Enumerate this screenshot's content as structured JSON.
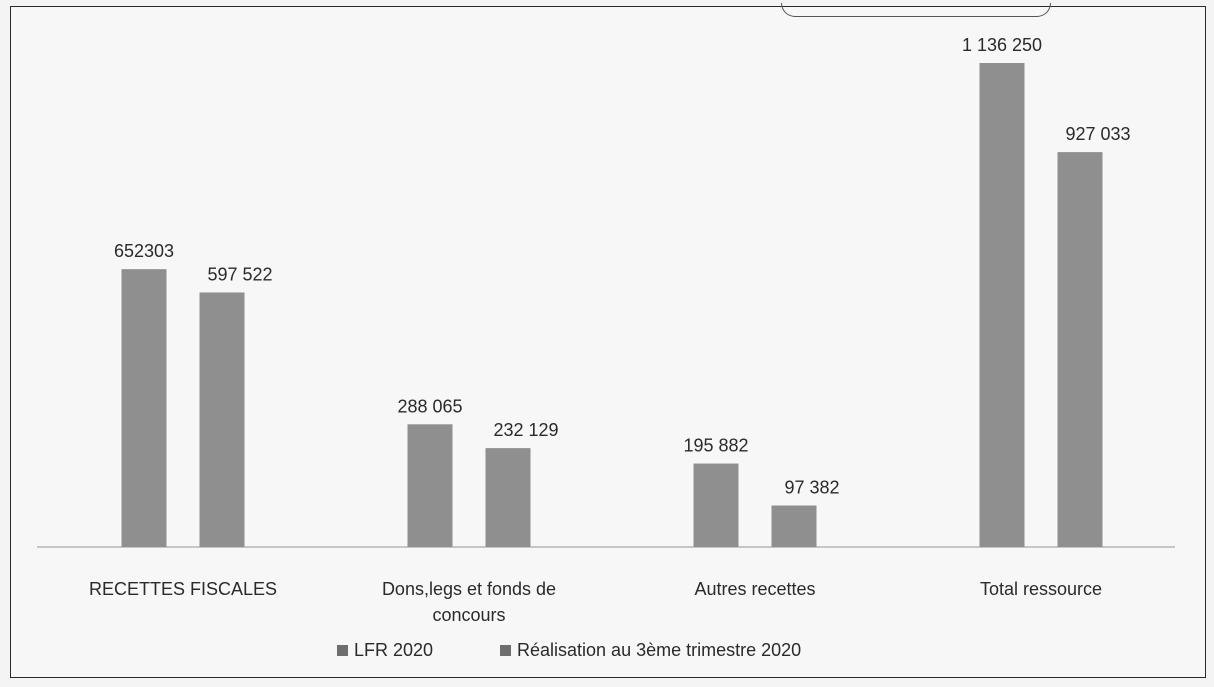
{
  "chart_data": {
    "type": "bar",
    "categories": [
      [
        "RECETTES FISCALES"
      ],
      [
        "Dons,legs et fonds de",
        "concours"
      ],
      [
        "Autres recettes"
      ],
      [
        "Total ressource"
      ]
    ],
    "series": [
      {
        "name": "LFR 2020",
        "values": [
          652303,
          288065,
          195882,
          1136250
        ],
        "labels": [
          "652303",
          "288 065",
          "195 882",
          "1 136 250"
        ]
      },
      {
        "name": "Réalisation au 3ème trimestre 2020",
        "values": [
          597522,
          232129,
          97382,
          927033
        ],
        "labels": [
          "597 522",
          "232 129",
          "97 382",
          "927 033"
        ]
      }
    ],
    "ylim": [
      0,
      1136250
    ],
    "grid": false,
    "legend": "bottom",
    "colors": {
      "bars": "#8f8f8f",
      "legend_swatch": "#6e6e6e",
      "axis": "#b5b5b5"
    }
  }
}
